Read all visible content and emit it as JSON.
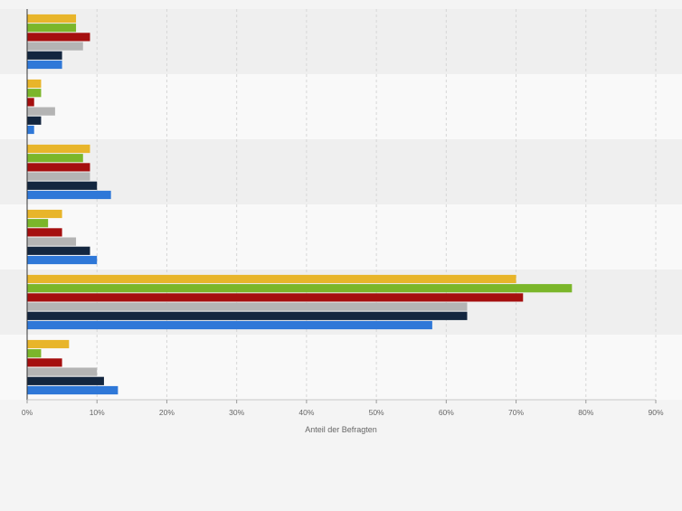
{
  "chart_data": {
    "type": "bar",
    "orientation": "horizontal",
    "categories": [
      "",
      "",
      "",
      "",
      "",
      ""
    ],
    "series": [
      {
        "color": "#e8b52a",
        "values": [
          7,
          2,
          9,
          5,
          70,
          6
        ]
      },
      {
        "color": "#7bb62a",
        "values": [
          7,
          2,
          8,
          3,
          78,
          2
        ]
      },
      {
        "color": "#a50f0f",
        "values": [
          9,
          1,
          9,
          5,
          71,
          5
        ]
      },
      {
        "color": "#b4b4b4",
        "values": [
          8,
          4,
          9,
          7,
          63,
          10
        ]
      },
      {
        "color": "#13263f",
        "values": [
          5,
          2,
          10,
          9,
          63,
          11
        ]
      },
      {
        "color": "#2f78d8",
        "values": [
          5,
          1,
          12,
          10,
          58,
          13
        ]
      }
    ],
    "xlabel": "Anteil der Befragten",
    "ylabel": "",
    "xlim": [
      0,
      90
    ],
    "xticks": [
      "0%",
      "10%",
      "20%",
      "30%",
      "40%",
      "50%",
      "60%",
      "70%",
      "80%",
      "90%"
    ],
    "grid": "vertical-dashed",
    "legend": "none"
  }
}
